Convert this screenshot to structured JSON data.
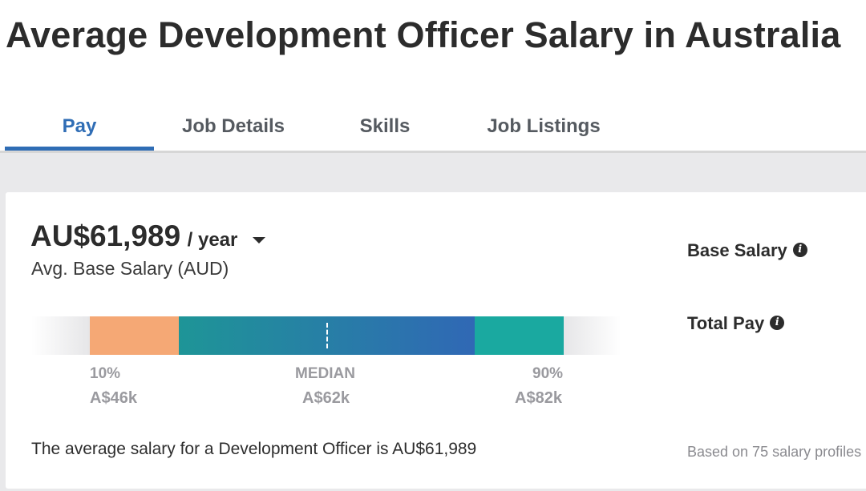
{
  "page": {
    "title": "Average Development Officer Salary in Australia"
  },
  "tabs": [
    {
      "label": "Pay",
      "active": true
    },
    {
      "label": "Job Details",
      "active": false
    },
    {
      "label": "Skills",
      "active": false
    },
    {
      "label": "Job Listings",
      "active": false
    }
  ],
  "salary": {
    "amount": "AU$61,989",
    "period": "/ year",
    "subtitle": "Avg. Base Salary (AUD)",
    "summary": "The average salary for a Development Officer is AU$61,989"
  },
  "range": {
    "p10_label": "10%",
    "p10_value": "A$46k",
    "median_label": "MEDIAN",
    "median_value": "A$62k",
    "p90_label": "90%",
    "p90_value": "A$82k"
  },
  "side": {
    "base_salary_label": "Base Salary",
    "total_pay_label": "Total Pay",
    "profiles_text": "Based on 75 salary profiles"
  },
  "colors": {
    "accent": "#2f6db5",
    "low_segment": "#f5a875",
    "mid_segment_start": "#1e9597",
    "mid_segment_end": "#3068b5",
    "high_segment": "#1aa9a0"
  }
}
